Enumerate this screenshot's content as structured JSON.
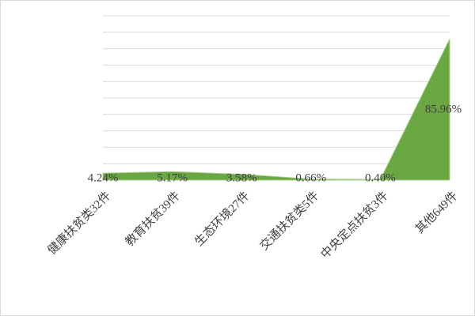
{
  "chart_data": {
    "type": "area",
    "categories": [
      "健康扶贫类32件",
      "教育扶贫39件",
      "生态环境27件",
      "交通扶贫类5件",
      "中央定点扶贫3件",
      "其他649件"
    ],
    "values": [
      4.24,
      5.17,
      3.58,
      0.66,
      0.4,
      85.96
    ],
    "value_labels": [
      "4.24%",
      "5.17%",
      "3.58%",
      "0.66%",
      "0.40%",
      "85.96%"
    ],
    "color": "#6aa743",
    "ylim": [
      0,
      100
    ],
    "yticks": [
      0,
      10,
      20,
      30,
      40,
      50,
      60,
      70,
      80,
      90,
      100
    ],
    "grid": true,
    "y_tick_labels_shown": false
  }
}
